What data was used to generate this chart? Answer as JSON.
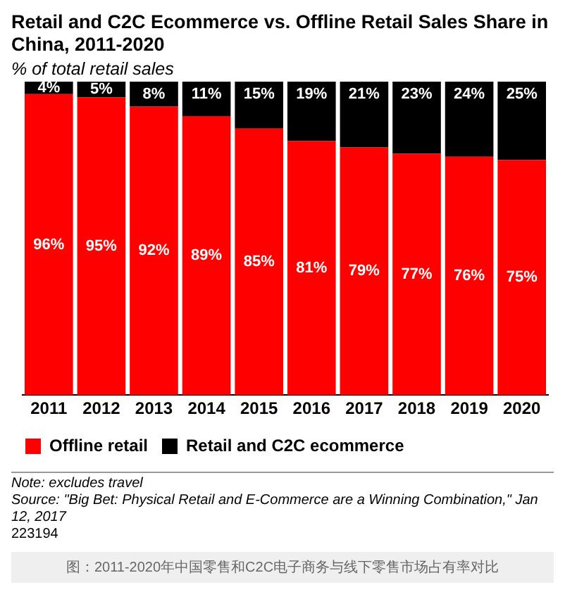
{
  "chart_data": {
    "type": "bar",
    "title": "Retail and C2C Ecommerce vs. Offline Retail Sales Share in China, 2011-2020",
    "subtitle": "% of total retail sales",
    "categories": [
      "2011",
      "2012",
      "2013",
      "2014",
      "2015",
      "2016",
      "2017",
      "2018",
      "2019",
      "2020"
    ],
    "series": [
      {
        "name": "Offline retail",
        "color": "#ff0000",
        "values": [
          96,
          95,
          92,
          89,
          85,
          81,
          79,
          77,
          76,
          75
        ],
        "value_labels": [
          "96%",
          "95%",
          "92%",
          "89%",
          "85%",
          "81%",
          "79%",
          "77%",
          "76%",
          "75%"
        ]
      },
      {
        "name": "Retail and C2C ecommerce",
        "color": "#000000",
        "values": [
          4,
          5,
          8,
          11,
          15,
          19,
          21,
          23,
          24,
          25
        ],
        "value_labels": [
          "4%",
          "5%",
          "8%",
          "11%",
          "15%",
          "19%",
          "21%",
          "23%",
          "24%",
          "25%"
        ]
      }
    ],
    "stacked": true,
    "ylim": [
      0,
      100
    ],
    "tick_labels": "x",
    "grid": false,
    "legend": "bottom left",
    "annotations": [
      "Note: excludes travel",
      "Source: \"Big Bet: Physical Retail and E-Commerce are a Winning Combination,\" Jan 12, 2017",
      "223194",
      "图：2011-2020年中国零售和C2C电子商务与线下零售市场占有率对比"
    ]
  }
}
